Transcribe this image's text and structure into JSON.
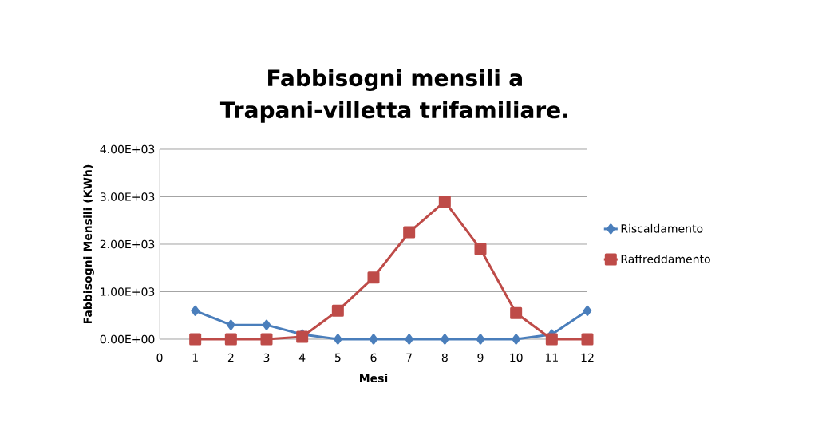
{
  "chart_data": {
    "type": "line",
    "title": "Fabbisogni mensili a Trapani-villetta trifamiliare.",
    "xlabel": "Mesi",
    "ylabel": "Fabbisogni Mensili (KWh)",
    "x": [
      1,
      2,
      3,
      4,
      5,
      6,
      7,
      8,
      9,
      10,
      11,
      12
    ],
    "series": [
      {
        "name": "Riscaldamento",
        "color": "#4a7ebb",
        "marker": "diamond",
        "values": [
          600,
          300,
          300,
          100,
          0,
          0,
          0,
          0,
          0,
          0,
          100,
          600
        ]
      },
      {
        "name": "Raffreddamento",
        "color": "#be4b48",
        "marker": "square",
        "values": [
          0,
          0,
          0,
          50,
          600,
          1300,
          2250,
          2900,
          1900,
          550,
          0,
          0
        ]
      }
    ],
    "xlim": [
      0,
      12
    ],
    "xticks": [
      0,
      1,
      2,
      3,
      4,
      5,
      6,
      7,
      8,
      9,
      10,
      11,
      12
    ],
    "ylim": [
      0,
      4000
    ],
    "yticks": [
      {
        "value": 0,
        "label": "0.00E+00"
      },
      {
        "value": 1000,
        "label": "1.00E+03"
      },
      {
        "value": 2000,
        "label": "2.00E+03"
      },
      {
        "value": 3000,
        "label": "3.00E+03"
      },
      {
        "value": 4000,
        "label": "4.00E+03"
      }
    ],
    "grid": "y",
    "legend": "right",
    "line_style": "solid"
  }
}
